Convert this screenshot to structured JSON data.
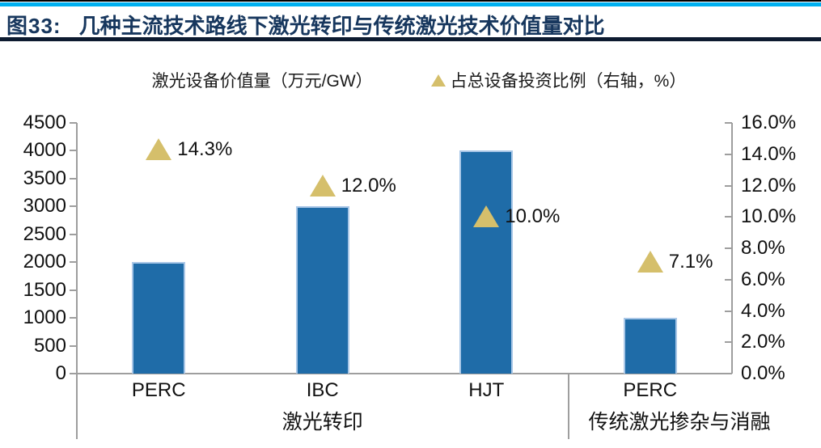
{
  "header": {
    "figure_label": "图33:",
    "title": "几种主流技术路线下激光转印与传统激光技术价值量对比",
    "accent_cyan": "#00B0F0",
    "title_color": "#17375E"
  },
  "legend": {
    "items": [
      {
        "label": "激光设备价值量（万元/GW）",
        "marker": "square",
        "color": "#1F6CA8"
      },
      {
        "label": "占总设备投资比例（右轴，%）",
        "marker": "triangle",
        "color": "#D5BF6B"
      }
    ]
  },
  "chart_data": {
    "type": "bar",
    "categories": [
      "PERC",
      "IBC",
      "HJT",
      "PERC"
    ],
    "groups": [
      {
        "label": "激光转印",
        "from": 0,
        "to": 2
      },
      {
        "label": "传统激光掺杂与消融",
        "from": 3,
        "to": 3
      }
    ],
    "series": [
      {
        "name": "激光设备价值量（万元/GW）",
        "type": "bar",
        "axis": "left",
        "color": "#1F6CA8",
        "values": [
          2000,
          3000,
          4000,
          1000
        ]
      },
      {
        "name": "占总设备投资比例（右轴，%）",
        "type": "scatter-triangle",
        "axis": "right",
        "color": "#D5BF6B",
        "values": [
          14.3,
          12.0,
          10.0,
          7.1
        ],
        "labels": [
          "14.3%",
          "12.0%",
          "10.0%",
          "7.1%"
        ]
      }
    ],
    "left_axis": {
      "min": 0,
      "max": 4500,
      "ticks": [
        "4500",
        "4000",
        "3500",
        "3000",
        "2500",
        "2000",
        "1500",
        "1000",
        "500",
        "0"
      ]
    },
    "right_axis": {
      "min": 0,
      "max": 16,
      "ticks": [
        "16.0%",
        "14.0%",
        "12.0%",
        "10.0%",
        "8.0%",
        "6.0%",
        "4.0%",
        "2.0%",
        "0.0%"
      ]
    },
    "grid": "off",
    "legend_position": "top"
  }
}
